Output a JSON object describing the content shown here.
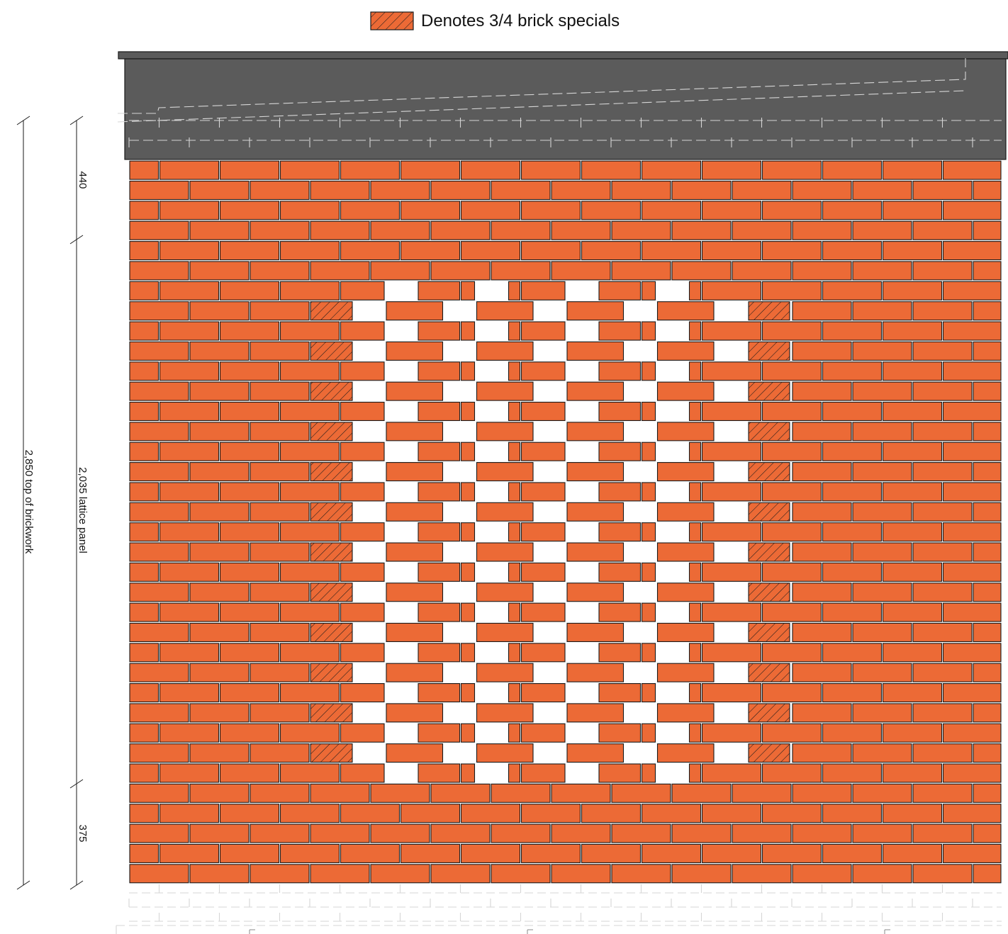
{
  "legend": {
    "label": "Denotes 3/4 brick specials"
  },
  "dimensions": {
    "overall_label": "2,850 top of brickwork",
    "top_label": "440",
    "lattice_label": "2,035 lattice panel",
    "bottom_label": "375"
  },
  "colors": {
    "brick": "#ec6a36",
    "mortar": "#1a1a1a",
    "coping": "#5b5b5b",
    "hidden_line": "#d6d6d6",
    "background": "#ffffff"
  }
}
